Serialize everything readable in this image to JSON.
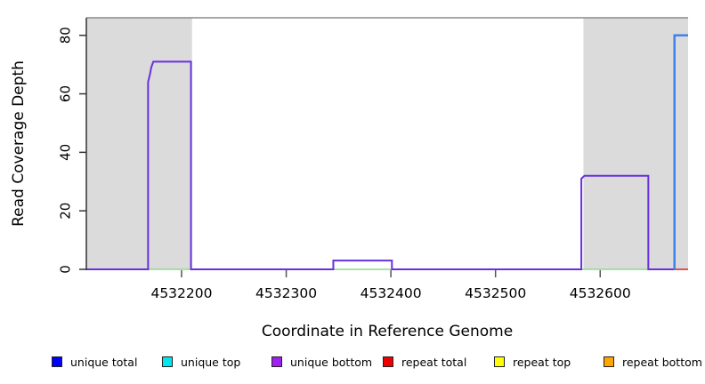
{
  "figure": {
    "xlabel": "Coordinate in Reference Genome",
    "ylabel": "Read Coverage Depth"
  },
  "legend": {
    "items": [
      {
        "name": "unique-total",
        "label": "unique total",
        "color": "#0000FF"
      },
      {
        "name": "unique-top",
        "label": "unique top",
        "color": "#00E5EE"
      },
      {
        "name": "unique-bottom",
        "label": "unique bottom",
        "color": "#A020F0"
      },
      {
        "name": "repeat-total",
        "label": "repeat total",
        "color": "#EE0000"
      },
      {
        "name": "repeat-top",
        "label": "repeat top",
        "color": "#FFFF00"
      },
      {
        "name": "repeat-bottom",
        "label": "repeat bottom",
        "color": "#FFA500"
      }
    ]
  },
  "chart_data": {
    "type": "line",
    "title": "",
    "xlabel": "Coordinate in Reference Genome",
    "ylabel": "Read Coverage Depth",
    "xlim": [
      4532109,
      4532684
    ],
    "ylim": [
      0,
      86
    ],
    "grid": false,
    "x_ticks": [
      {
        "value": 4532200,
        "label": "4532200"
      },
      {
        "value": 4532300,
        "label": "4532300"
      },
      {
        "value": 4532400,
        "label": "4532400"
      },
      {
        "value": 4532500,
        "label": "4532500"
      },
      {
        "value": 4532600,
        "label": "4532600"
      }
    ],
    "y_ticks": [
      {
        "value": 0,
        "label": "0"
      },
      {
        "value": 20,
        "label": "20"
      },
      {
        "value": 40,
        "label": "40"
      },
      {
        "value": 60,
        "label": "60"
      },
      {
        "value": 80,
        "label": "80"
      }
    ],
    "shaded_regions": [
      {
        "name": "repeat-region-left",
        "x0": 4532109,
        "x1": 4532210,
        "color": "#DBDBDB"
      },
      {
        "name": "repeat-region-right",
        "x0": 4532584,
        "x1": 4532684,
        "color": "#DBDBDB"
      }
    ],
    "border": {
      "top_color": "#8A8A8A",
      "axis_color": "#333333",
      "tick_color": "#555555"
    },
    "series": [
      {
        "name": "unique-top-zero-segment-1",
        "color": "#8FD98F",
        "width": 1.6,
        "points": [
          [
            4532168,
            0
          ],
          [
            4532209,
            0
          ]
        ]
      },
      {
        "name": "unique-top-zero-segment-2",
        "color": "#8FD98F",
        "width": 1.6,
        "points": [
          [
            4532345,
            0
          ],
          [
            4532401,
            0
          ]
        ]
      },
      {
        "name": "unique-top-zero-segment-3",
        "color": "#8FD98F",
        "width": 1.6,
        "points": [
          [
            4532582,
            0
          ],
          [
            4532646,
            0
          ]
        ]
      },
      {
        "name": "unique-bottom",
        "color": "#6930E0",
        "width": 2,
        "points": [
          [
            4532109,
            0
          ],
          [
            4532168,
            0
          ],
          [
            4532168,
            64
          ],
          [
            4532170,
            67
          ],
          [
            4532171,
            69
          ],
          [
            4532173,
            71
          ],
          [
            4532209,
            71
          ],
          [
            4532209,
            0
          ],
          [
            4532345,
            0
          ],
          [
            4532345,
            3
          ],
          [
            4532401,
            3
          ],
          [
            4532401,
            0
          ],
          [
            4532582,
            0
          ],
          [
            4532582,
            31
          ],
          [
            4532585,
            32
          ],
          [
            4532646,
            32
          ],
          [
            4532646,
            0
          ],
          [
            4532671,
            0
          ]
        ]
      },
      {
        "name": "repeat-total-zero-segment",
        "color": "#E85050",
        "width": 2,
        "points": [
          [
            4532671,
            0
          ],
          [
            4532684,
            0
          ]
        ]
      },
      {
        "name": "unique-total-and-top",
        "color": "#3E82F0",
        "width": 2.5,
        "points": [
          [
            4532671,
            0
          ],
          [
            4532671,
            80
          ],
          [
            4532684,
            80
          ]
        ]
      }
    ]
  }
}
